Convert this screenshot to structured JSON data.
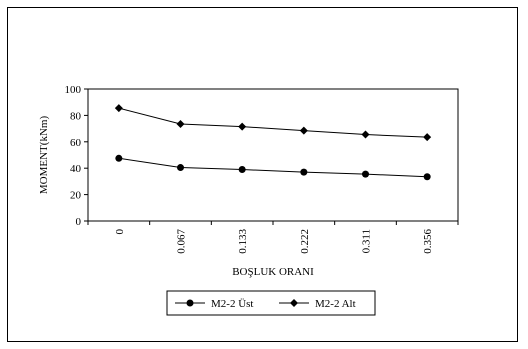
{
  "chart_data": {
    "type": "line",
    "title": "",
    "xlabel": "BOŞLUK ORANI",
    "ylabel": "MOMENT(kNm)",
    "categories": [
      "0",
      "0.067",
      "0.133",
      "0.222",
      "0.311",
      "0.356"
    ],
    "ylim": [
      0,
      100
    ],
    "yticks": [
      "0",
      "20",
      "40",
      "60",
      "80",
      "100"
    ],
    "grid": false,
    "legend_position": "bottom",
    "series": [
      {
        "name": "M2-2 Üst",
        "marker": "circle",
        "color": "#000000",
        "values": [
          47.5,
          40.5,
          39,
          37,
          35.5,
          33.5
        ]
      },
      {
        "name": "M2-2 Alt",
        "marker": "diamond",
        "color": "#000000",
        "values": [
          85.5,
          73.5,
          71.5,
          68.5,
          65.5,
          63.5
        ]
      }
    ]
  }
}
